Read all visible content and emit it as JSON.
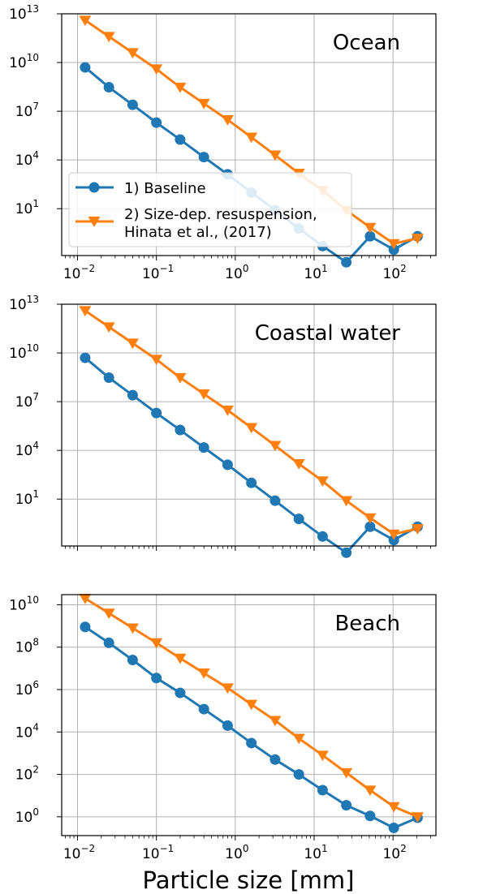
{
  "xlabel": "Particle size [mm]",
  "legend": {
    "location": "lower-left of first panel",
    "entries": [
      {
        "label": "1) Baseline"
      },
      {
        "label": "2) Size-dep. resuspension,",
        "label2": "Hinata et al., (2017)"
      }
    ]
  },
  "colors": {
    "baseline": "#1f77b4",
    "resuspension": "#ff7f0e",
    "grid": "#b0b0b0"
  },
  "chart_data": [
    {
      "type": "line",
      "title": "Ocean",
      "xscale": "log",
      "yscale": "log",
      "xlim": [
        0.0063,
        350
      ],
      "ylim": [
        0.013,
        10000000000000.0
      ],
      "grid": true,
      "xtick_labels": [
        {
          "value": 0.01,
          "base": "10",
          "exp": "−2"
        },
        {
          "value": 0.1,
          "base": "10",
          "exp": "−1"
        },
        {
          "value": 1,
          "base": "10",
          "exp": "0"
        },
        {
          "value": 10,
          "base": "10",
          "exp": "1"
        },
        {
          "value": 100,
          "base": "10",
          "exp": "2"
        }
      ],
      "ytick_labels": [
        {
          "value": 10,
          "base": "10",
          "exp": "1"
        },
        {
          "value": 10000.0,
          "base": "10",
          "exp": "4"
        },
        {
          "value": 10000000.0,
          "base": "10",
          "exp": "7"
        },
        {
          "value": 10000000000.0,
          "base": "10",
          "exp": "10"
        },
        {
          "value": 10000000000000.0,
          "base": "10",
          "exp": "13"
        }
      ],
      "x": [
        0.0125,
        0.025,
        0.05,
        0.1,
        0.2,
        0.4,
        0.8,
        1.6,
        3.2,
        6.4,
        12.8,
        25.6,
        51.2,
        102.4,
        204.8
      ],
      "series": [
        {
          "name": "1) Baseline",
          "marker": "circle",
          "values": [
            5000000000.0,
            300000000.0,
            25000000.0,
            2000000.0,
            180000.0,
            15000.0,
            1300.0,
            100.0,
            8,
            0.6,
            0.05,
            0.005,
            0.2,
            0.03,
            0.2
          ]
        },
        {
          "name": "2) Size-dep. resuspension, Hinata et al., (2017)",
          "marker": "triangle-down",
          "values": [
            4000000000000.0,
            400000000000.0,
            40000000000.0,
            4000000000.0,
            300000000.0,
            30000000.0,
            3000000.0,
            250000.0,
            20000.0,
            1500.0,
            130.0,
            8,
            0.7,
            0.07,
            0.15
          ]
        }
      ]
    },
    {
      "type": "line",
      "title": "Coastal water",
      "xscale": "log",
      "yscale": "log",
      "xlim": [
        0.0063,
        350
      ],
      "ylim": [
        0.013,
        10000000000000.0
      ],
      "grid": true,
      "ytick_labels": [
        {
          "value": 10,
          "base": "10",
          "exp": "1"
        },
        {
          "value": 10000.0,
          "base": "10",
          "exp": "4"
        },
        {
          "value": 10000000.0,
          "base": "10",
          "exp": "7"
        },
        {
          "value": 10000000000.0,
          "base": "10",
          "exp": "10"
        },
        {
          "value": 10000000000000.0,
          "base": "10",
          "exp": "13"
        }
      ],
      "x": [
        0.0125,
        0.025,
        0.05,
        0.1,
        0.2,
        0.4,
        0.8,
        1.6,
        3.2,
        6.4,
        12.8,
        25.6,
        51.2,
        102.4,
        204.8
      ],
      "series": [
        {
          "name": "1) Baseline",
          "marker": "circle",
          "values": [
            5000000000.0,
            300000000.0,
            25000000.0,
            2000000.0,
            180000.0,
            15000.0,
            1300.0,
            100.0,
            8,
            0.6,
            0.05,
            0.005,
            0.2,
            0.03,
            0.2
          ]
        },
        {
          "name": "2) Size-dep. resuspension, Hinata et al., (2017)",
          "marker": "triangle-down",
          "values": [
            4000000000000.0,
            400000000000.0,
            40000000000.0,
            4000000000.0,
            300000000.0,
            30000000.0,
            3000000.0,
            250000.0,
            20000.0,
            1500.0,
            130.0,
            8,
            0.7,
            0.07,
            0.15
          ]
        }
      ]
    },
    {
      "type": "line",
      "title": "Beach",
      "xscale": "log",
      "yscale": "log",
      "xlim": [
        0.0063,
        350
      ],
      "ylim": [
        0.13,
        30000000000.0
      ],
      "grid": true,
      "xtick_labels": [
        {
          "value": 0.01,
          "base": "10",
          "exp": "−2"
        },
        {
          "value": 0.1,
          "base": "10",
          "exp": "−1"
        },
        {
          "value": 1,
          "base": "10",
          "exp": "0"
        },
        {
          "value": 10,
          "base": "10",
          "exp": "1"
        },
        {
          "value": 100,
          "base": "10",
          "exp": "2"
        }
      ],
      "ytick_labels": [
        {
          "value": 1,
          "base": "10",
          "exp": "0"
        },
        {
          "value": 100,
          "base": "10",
          "exp": "2"
        },
        {
          "value": 10000.0,
          "base": "10",
          "exp": "4"
        },
        {
          "value": 1000000.0,
          "base": "10",
          "exp": "6"
        },
        {
          "value": 100000000.0,
          "base": "10",
          "exp": "8"
        },
        {
          "value": 10000000000.0,
          "base": "10",
          "exp": "10"
        }
      ],
      "x": [
        0.0125,
        0.025,
        0.05,
        0.1,
        0.2,
        0.4,
        0.8,
        1.6,
        3.2,
        6.4,
        12.8,
        25.6,
        51.2,
        102.4,
        204.8
      ],
      "series": [
        {
          "name": "1) Baseline",
          "marker": "circle",
          "values": [
            900000000.0,
            160000000.0,
            25000000.0,
            3500000.0,
            700000.0,
            120000.0,
            20000.0,
            3000.0,
            500.0,
            100.0,
            18.0,
            3.5,
            1.1,
            0.3,
            0.9
          ]
        },
        {
          "name": "2) Size-dep. resuspension, Hinata et al., (2017)",
          "marker": "triangle-down",
          "values": [
            20000000000.0,
            4000000000.0,
            800000000.0,
            160000000.0,
            30000000.0,
            6000000.0,
            1200000.0,
            200000.0,
            35000.0,
            5000.0,
            800.0,
            120.0,
            18.0,
            3,
            1
          ]
        }
      ]
    }
  ]
}
